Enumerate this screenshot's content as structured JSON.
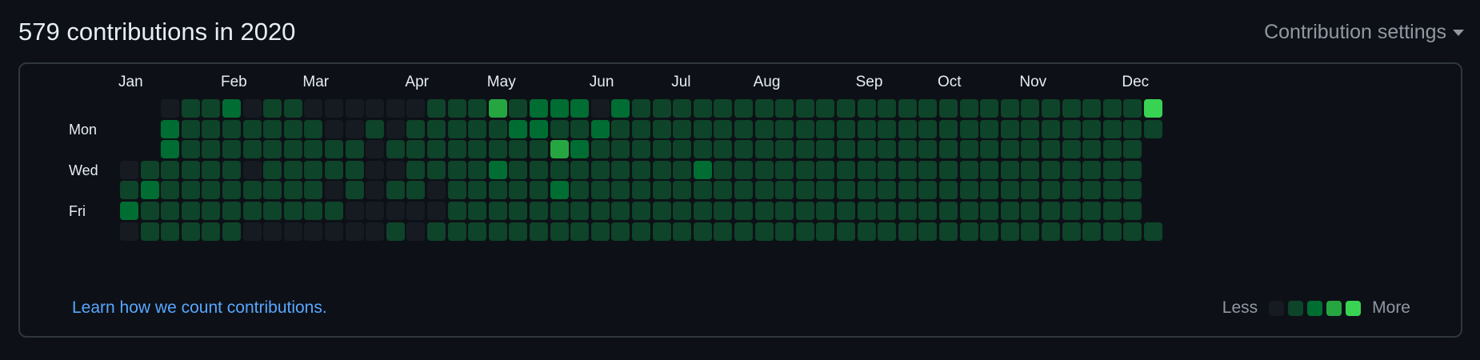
{
  "header": {
    "title": "579 contributions in 2020",
    "settings_label": "Contribution settings",
    "settings_icon": "caret-down-icon"
  },
  "graph": {
    "months": [
      {
        "label": "Jan",
        "week": 0
      },
      {
        "label": "Feb",
        "week": 5
      },
      {
        "label": "Mar",
        "week": 9
      },
      {
        "label": "Apr",
        "week": 14
      },
      {
        "label": "May",
        "week": 18
      },
      {
        "label": "Jun",
        "week": 23
      },
      {
        "label": "Jul",
        "week": 27
      },
      {
        "label": "Aug",
        "week": 31
      },
      {
        "label": "Sep",
        "week": 36
      },
      {
        "label": "Oct",
        "week": 40
      },
      {
        "label": "Nov",
        "week": 44
      },
      {
        "label": "Dec",
        "week": 49
      }
    ],
    "days": [
      {
        "label": "Mon",
        "row": 1
      },
      {
        "label": "Wed",
        "row": 3
      },
      {
        "label": "Fri",
        "row": 5
      }
    ],
    "levels": [
      "..0112011000000111312220211111111111111111111111114",
      "..2111111100101111122112111111111111111111111111111",
      "..211111111101111111132111111111111111111111111111.",
      "01111101111100111121111111112111111111111111111111.",
      "12111111110101101111121111111111111111111111111111",
      "21111111111000001111111111111111111111111111111111",
      "011111000000010111111111111111111111111111111111111"
    ]
  },
  "colors": {
    "level0": "#161b22",
    "level1": "#0e4429",
    "level2": "#006d32",
    "level3": "#26a641",
    "level4": "#39d353"
  },
  "footer": {
    "learn_link": "Learn how we count contributions.",
    "legend_less": "Less",
    "legend_more": "More"
  }
}
